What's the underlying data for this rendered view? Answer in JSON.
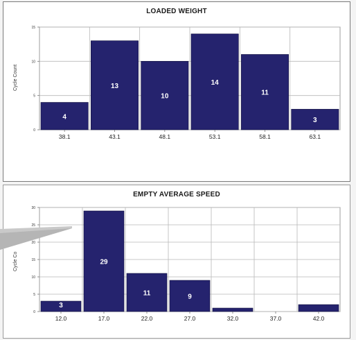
{
  "chart_data": [
    {
      "type": "bar",
      "title": "LOADED WEIGHT",
      "ylabel": "Cycle Count",
      "xlabel": "",
      "categories": [
        "38.1",
        "43.1",
        "48.1",
        "53.1",
        "58.1",
        "63.1"
      ],
      "values": [
        4,
        13,
        10,
        14,
        11,
        3
      ],
      "data_labels": [
        "4",
        "13",
        "10",
        "14",
        "11",
        "3"
      ],
      "yticks": [
        "0",
        "5",
        "10",
        "15"
      ],
      "ylim": [
        0,
        15
      ],
      "grid": true,
      "bar_color": "#25236e"
    },
    {
      "type": "bar",
      "title": "EMPTY AVERAGE SPEED",
      "ylabel": "Cycle Co",
      "xlabel": "",
      "categories": [
        "12.0",
        "17.0",
        "22.0",
        "27.0",
        "32.0",
        "37.0",
        "42.0"
      ],
      "values": [
        3,
        29,
        11,
        9,
        1,
        0,
        2
      ],
      "data_labels": [
        "3",
        "29",
        "11",
        "9",
        "",
        "",
        ""
      ],
      "yticks": [
        "0",
        "5",
        "10",
        "15",
        "20",
        "25",
        "30"
      ],
      "ylim": [
        0,
        30
      ],
      "grid": true,
      "bar_color": "#25236e"
    }
  ]
}
